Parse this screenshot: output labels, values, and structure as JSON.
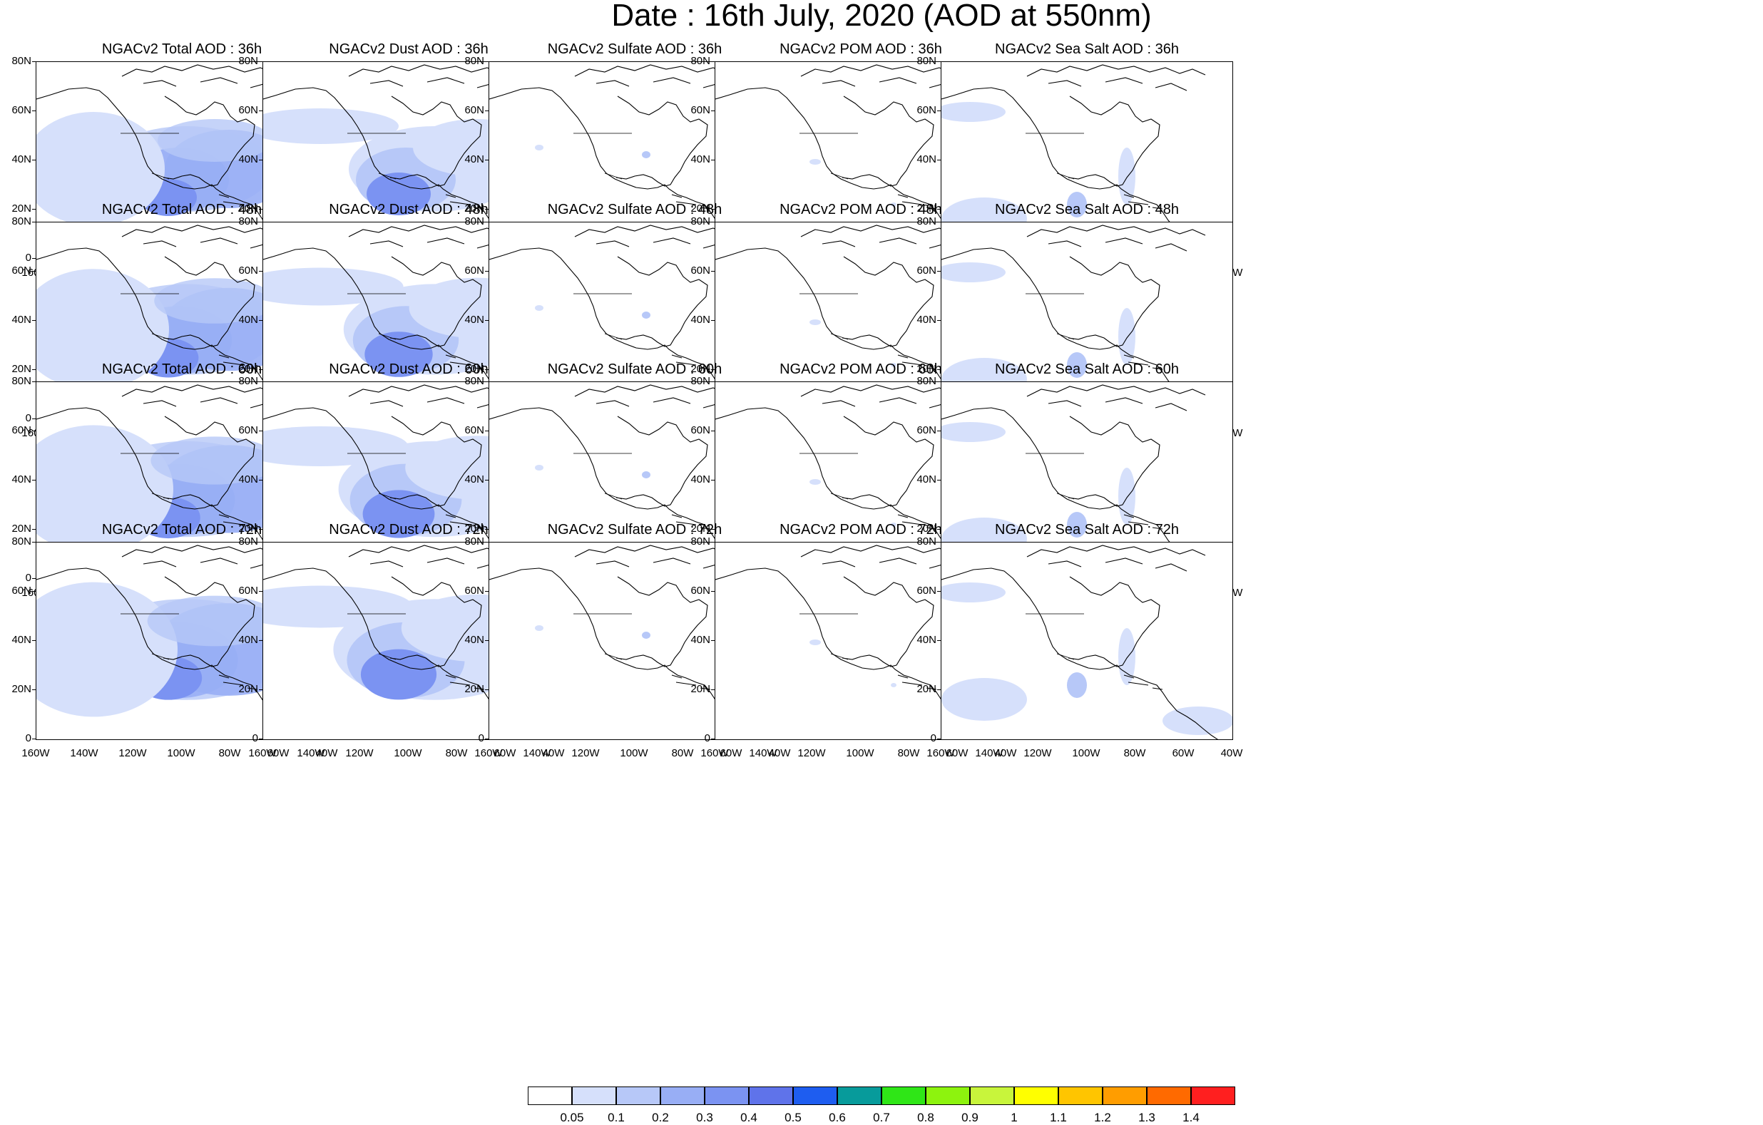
{
  "title": "Date : 16th July, 2020 (AOD at 550nm)",
  "panel_rows": [
    [
      "NGACv2 Total AOD : 36h",
      "NGACv2 Dust AOD : 36h",
      "NGACv2 Sulfate AOD : 36h",
      "NGACv2 POM AOD : 36h",
      "NGACv2 Sea Salt AOD : 36h"
    ],
    [
      "NGACv2 Total AOD : 48h",
      "NGACv2 Dust AOD : 48h",
      "NGACv2 Sulfate AOD : 48h",
      "NGACv2 POM AOD : 48h",
      "NGACv2 Sea Salt AOD : 48h"
    ],
    [
      "NGACv2 Total AOD : 60h",
      "NGACv2 Dust AOD : 60h",
      "NGACv2 Sulfate AOD : 60h",
      "NGACv2 POM AOD : 60h",
      "NGACv2 Sea Salt AOD : 60h"
    ],
    [
      "NGACv2 Total AOD : 72h",
      "NGACv2 Dust AOD : 72h",
      "NGACv2 Sulfate AOD : 72h",
      "NGACv2 POM AOD : 72h",
      "NGACv2 Sea Salt  AOD : 72h"
    ]
  ],
  "lat_labels": [
    "80N",
    "60N",
    "40N",
    "20N",
    "0"
  ],
  "lon_labels": [
    "160W",
    "140W",
    "120W",
    "100W",
    "80W",
    "60W",
    "40W"
  ],
  "colorbar": {
    "labels": [
      "0.05",
      "0.1",
      "0.2",
      "0.3",
      "0.4",
      "0.5",
      "0.6",
      "0.7",
      "0.8",
      "0.9",
      "1",
      "1.1",
      "1.2",
      "1.3",
      "1.4"
    ],
    "colors": [
      "#ffffff",
      "#d6e0fb",
      "#b7c8f8",
      "#98aef5",
      "#7b93f2",
      "#5f73ea",
      "#1e5df0",
      "#079b9b",
      "#2fe617",
      "#8df30e",
      "#c8f53b",
      "#ffff00",
      "#ffc500",
      "#ff9d00",
      "#ff6a00",
      "#ff1f1f"
    ]
  }
}
